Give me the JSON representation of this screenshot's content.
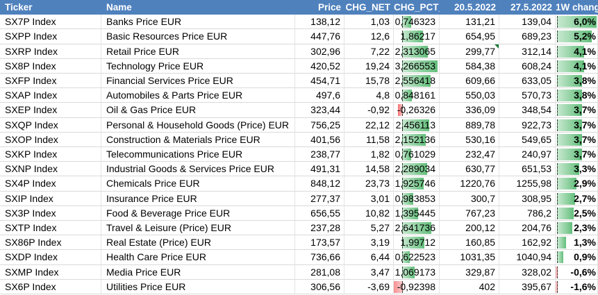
{
  "headers": {
    "ticker": "Ticker",
    "name": "Name",
    "price": "Price",
    "chg_net": "CHG_NET",
    "chg_pct": "CHG_PCT_",
    "d1": "20.5.2022",
    "d2": "27.5.2022",
    "wk": "1W change"
  },
  "colors": {
    "header_bg": "#4f81bd",
    "positive_bar": "#63be7b",
    "negative_bar": "#f8696b"
  },
  "rows": [
    {
      "ticker": "SX7P Index",
      "name": "Banks Price EUR",
      "price": "138,12",
      "chg_net": "1,03",
      "chg_pct": "0,746323",
      "chg_pct_value": 0.746323,
      "d1": "131,21",
      "d2": "139,04",
      "wk": "6,0%",
      "wk_value": 6.0
    },
    {
      "ticker": "SXPP Index",
      "name": "Basic Resources Price EUR",
      "price": "447,76",
      "chg_net": "12,6",
      "chg_pct": "1,86217",
      "chg_pct_value": 1.86217,
      "d1": "654,95",
      "d2": "689,23",
      "wk": "5,2%",
      "wk_value": 5.2
    },
    {
      "ticker": "SXRP Index",
      "name": "Retail Price EUR",
      "price": "302,96",
      "chg_net": "7,22",
      "chg_pct": "2,313065",
      "chg_pct_value": 2.313065,
      "d1": "299,77",
      "d2": "312,14",
      "wk": "4,1%",
      "wk_value": 4.1
    },
    {
      "ticker": "SX8P Index",
      "name": "Technology Price EUR",
      "price": "420,52",
      "chg_net": "19,24",
      "chg_pct": "3,266553",
      "chg_pct_value": 3.266553,
      "d1": "584,38",
      "d2": "608,24",
      "wk": "4,1%",
      "wk_value": 4.1
    },
    {
      "ticker": "SXFP Index",
      "name": "Financial Services Price EUR",
      "price": "454,71",
      "chg_net": "15,78",
      "chg_pct": "2,556418",
      "chg_pct_value": 2.556418,
      "d1": "609,66",
      "d2": "633,05",
      "wk": "3,8%",
      "wk_value": 3.8
    },
    {
      "ticker": "SXAP Index",
      "name": "Automobiles & Parts Price EUR",
      "price": "497,6",
      "chg_net": "4,8",
      "chg_pct": "0,848161",
      "chg_pct_value": 0.848161,
      "d1": "550,03",
      "d2": "570,73",
      "wk": "3,8%",
      "wk_value": 3.8
    },
    {
      "ticker": "SXEP Index",
      "name": "Oil & Gas Price EUR",
      "price": "323,44",
      "chg_net": "-0,92",
      "chg_pct": "-0,26326",
      "chg_pct_value": -0.26326,
      "d1": "336,09",
      "d2": "348,54",
      "wk": "3,7%",
      "wk_value": 3.7
    },
    {
      "ticker": "SXQP Index",
      "name": "Personal & Household Goods (Price) EUR",
      "price": "756,25",
      "chg_net": "22,12",
      "chg_pct": "2,456113",
      "chg_pct_value": 2.456113,
      "d1": "889,78",
      "d2": "922,73",
      "wk": "3,7%",
      "wk_value": 3.7
    },
    {
      "ticker": "SXOP Index",
      "name": "Construction & Materials Price EUR",
      "price": "401,56",
      "chg_net": "11,58",
      "chg_pct": "2,152136",
      "chg_pct_value": 2.152136,
      "d1": "530,16",
      "d2": "549,65",
      "wk": "3,7%",
      "wk_value": 3.7
    },
    {
      "ticker": "SXKP Index",
      "name": "Telecommunications Price EUR",
      "price": "238,77",
      "chg_net": "1,82",
      "chg_pct": "0,761029",
      "chg_pct_value": 0.761029,
      "d1": "232,47",
      "d2": "240,97",
      "wk": "3,7%",
      "wk_value": 3.7
    },
    {
      "ticker": "SXNP Index",
      "name": "Industrial Goods & Services Price EUR",
      "price": "491,31",
      "chg_net": "14,58",
      "chg_pct": "2,289034",
      "chg_pct_value": 2.289034,
      "d1": "630,77",
      "d2": "651,53",
      "wk": "3,3%",
      "wk_value": 3.3
    },
    {
      "ticker": "SX4P Index",
      "name": "Chemicals Price EUR",
      "price": "848,12",
      "chg_net": "23,73",
      "chg_pct": "1,925746",
      "chg_pct_value": 1.925746,
      "d1": "1220,76",
      "d2": "1255,98",
      "wk": "2,9%",
      "wk_value": 2.9
    },
    {
      "ticker": "SXIP Index",
      "name": "Insurance Price EUR",
      "price": "277,37",
      "chg_net": "3,01",
      "chg_pct": "0,983853",
      "chg_pct_value": 0.983853,
      "d1": "300,7",
      "d2": "308,95",
      "wk": "2,7%",
      "wk_value": 2.7
    },
    {
      "ticker": "SX3P Index",
      "name": "Food & Beverage Price EUR",
      "price": "656,55",
      "chg_net": "10,82",
      "chg_pct": "1,395445",
      "chg_pct_value": 1.395445,
      "d1": "767,23",
      "d2": "786,2",
      "wk": "2,5%",
      "wk_value": 2.5
    },
    {
      "ticker": "SXTP Index",
      "name": "Travel & Leisure (Price) EUR",
      "price": "237,28",
      "chg_net": "5,27",
      "chg_pct": "2,641736",
      "chg_pct_value": 2.641736,
      "d1": "200,12",
      "d2": "204,76",
      "wk": "2,3%",
      "wk_value": 2.3
    },
    {
      "ticker": "SX86P Index",
      "name": "Real Estate (Price) EUR",
      "price": "173,57",
      "chg_net": "3,19",
      "chg_pct": "1,99712",
      "chg_pct_value": 1.99712,
      "d1": "160,85",
      "d2": "162,92",
      "wk": "1,3%",
      "wk_value": 1.3
    },
    {
      "ticker": "SXDP Index",
      "name": "Health Care Price EUR",
      "price": "736,66",
      "chg_net": "6,44",
      "chg_pct": "0,622523",
      "chg_pct_value": 0.622523,
      "d1": "1031,35",
      "d2": "1040,94",
      "wk": "0,9%",
      "wk_value": 0.9
    },
    {
      "ticker": "SXMP Index",
      "name": "Media Price EUR",
      "price": "281,08",
      "chg_net": "3,47",
      "chg_pct": "1,069173",
      "chg_pct_value": 1.069173,
      "d1": "329,87",
      "d2": "328,02",
      "wk": "-0,6%",
      "wk_value": -0.6
    },
    {
      "ticker": "SX6P Index",
      "name": "Utilities Price EUR",
      "price": "306,56",
      "chg_net": "-3,69",
      "chg_pct": "-0,92398",
      "chg_pct_value": -0.92398,
      "d1": "402",
      "d2": "395,67",
      "wk": "-1,6%",
      "wk_value": -1.6
    }
  ]
}
